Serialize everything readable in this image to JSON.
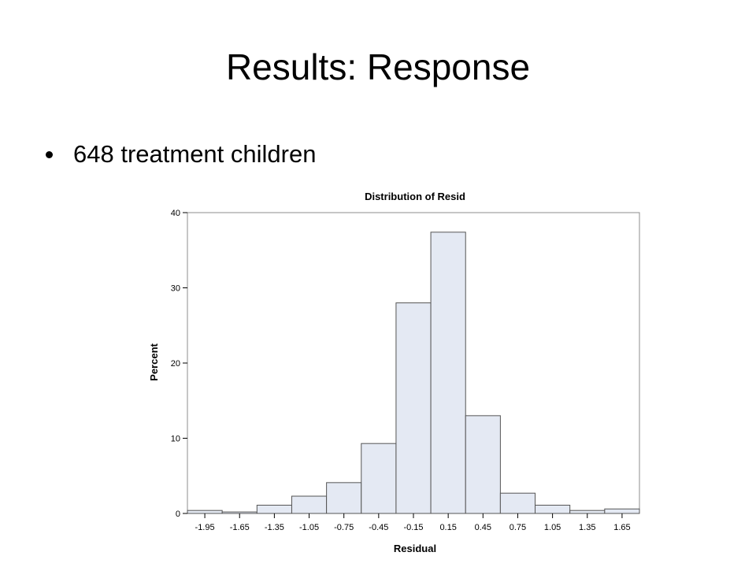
{
  "slide": {
    "title": "Results: Response",
    "bullets": [
      "648 treatment children"
    ]
  },
  "chart_data": {
    "type": "bar",
    "title": "Distribution of Resid",
    "xlabel": "Residual",
    "ylabel": "Percent",
    "x_ticks": [
      -1.95,
      -1.65,
      -1.35,
      -1.05,
      -0.75,
      -0.45,
      -0.15,
      0.15,
      0.45,
      0.75,
      1.05,
      1.35,
      1.65
    ],
    "x_tick_labels": [
      "-1.95",
      "-1.65",
      "-1.35",
      "-1.05",
      "-0.75",
      "-0.45",
      "-0.15",
      "0.15",
      "0.45",
      "0.75",
      "1.05",
      "1.35",
      "1.65"
    ],
    "bin_width": 0.3,
    "bins": [
      {
        "mid": -1.95,
        "value": 0.4
      },
      {
        "mid": -1.65,
        "value": 0.2
      },
      {
        "mid": -1.35,
        "value": 1.1
      },
      {
        "mid": -1.05,
        "value": 2.3
      },
      {
        "mid": -0.75,
        "value": 4.1
      },
      {
        "mid": -0.45,
        "value": 9.3
      },
      {
        "mid": -0.15,
        "value": 28.0
      },
      {
        "mid": 0.15,
        "value": 37.4
      },
      {
        "mid": 0.45,
        "value": 13.0
      },
      {
        "mid": 0.75,
        "value": 2.7
      },
      {
        "mid": 1.05,
        "value": 1.1
      },
      {
        "mid": 1.35,
        "value": 0.4
      },
      {
        "mid": 1.65,
        "value": 0.6
      }
    ],
    "y_ticks": [
      0,
      10,
      20,
      30,
      40
    ],
    "xlim": [
      -2.1,
      1.8
    ],
    "ylim": [
      0,
      40
    ],
    "grid": false,
    "bar_fill": "#e4e9f3",
    "bar_stroke": "#555555"
  }
}
